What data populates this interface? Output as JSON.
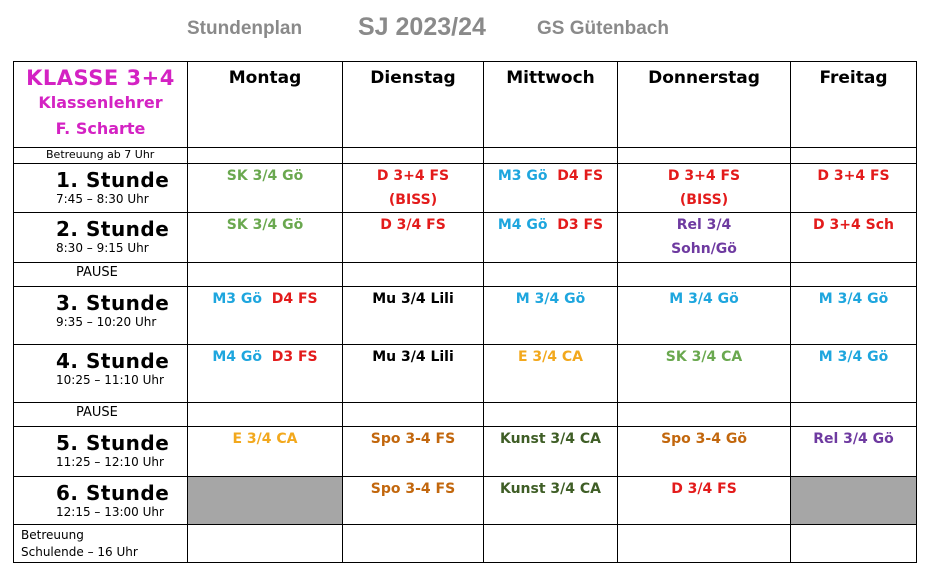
{
  "header": {
    "left": "Stundenplan",
    "center": "SJ 2023/24",
    "right": "GS Gütenbach"
  },
  "class_info": {
    "title": "KLASSE 3+4",
    "teacher_label": "Klassenlehrer",
    "teacher_name": "F. Scharte"
  },
  "days": [
    "Montag",
    "Dienstag",
    "Mittwoch",
    "Donnerstag",
    "Freitag"
  ],
  "betreuung_morning": "Betreuung ab 7 Uhr",
  "pause_label": "PAUSE",
  "betreuung_end": {
    "line1": "Betreuung",
    "line2": "Schulende – 16 Uhr"
  },
  "periods": [
    {
      "label": "1.  Stunde",
      "time": "7:45 – 8:30 Uhr",
      "cells": [
        {
          "lines": [
            {
              "text": "SK 3/4 Gö",
              "color": "#6aa84f"
            }
          ]
        },
        {
          "lines": [
            {
              "text": "D 3+4 FS",
              "color": "#e31b1b"
            },
            {
              "text": "(BISS)",
              "color": "#e31b1b"
            }
          ]
        },
        {
          "lines": [
            {
              "parts": [
                {
                  "text": "M3 Gö  ",
                  "color": "#1ea6de"
                },
                {
                  "text": "D4 FS",
                  "color": "#e31b1b"
                }
              ]
            }
          ]
        },
        {
          "lines": [
            {
              "text": "D 3+4 FS",
              "color": "#e31b1b"
            },
            {
              "text": "(BISS)",
              "color": "#e31b1b"
            }
          ]
        },
        {
          "lines": [
            {
              "text": "D 3+4 FS",
              "color": "#e31b1b"
            }
          ]
        }
      ]
    },
    {
      "label": "2.  Stunde",
      "time": "8:30 – 9:15 Uhr",
      "cells": [
        {
          "lines": [
            {
              "text": "SK 3/4 Gö",
              "color": "#6aa84f"
            }
          ]
        },
        {
          "lines": [
            {
              "text": "D 3/4 FS",
              "color": "#e31b1b"
            }
          ]
        },
        {
          "lines": [
            {
              "parts": [
                {
                  "text": "M4 Gö  ",
                  "color": "#1ea6de"
                },
                {
                  "text": "D3 FS",
                  "color": "#e31b1b"
                }
              ]
            }
          ]
        },
        {
          "lines": [
            {
              "text": "Rel 3/4",
              "color": "#6e3aa0"
            },
            {
              "text": "Sohn/Gö",
              "color": "#6e3aa0"
            }
          ]
        },
        {
          "lines": [
            {
              "text": "D 3+4 Sch",
              "color": "#e31b1b"
            }
          ]
        }
      ]
    },
    {
      "label": "3.  Stunde",
      "time": "9:35 – 10:20 Uhr",
      "cells": [
        {
          "lines": [
            {
              "parts": [
                {
                  "text": "M3 Gö  ",
                  "color": "#1ea6de"
                },
                {
                  "text": "D4 FS",
                  "color": "#e31b1b"
                }
              ]
            }
          ]
        },
        {
          "lines": [
            {
              "text": "Mu 3/4 Lili",
              "color": "#000000"
            }
          ]
        },
        {
          "lines": [
            {
              "text": "M 3/4 Gö",
              "color": "#1ea6de"
            }
          ]
        },
        {
          "lines": [
            {
              "text": "M 3/4 Gö",
              "color": "#1ea6de"
            }
          ]
        },
        {
          "lines": [
            {
              "text": "M 3/4 Gö",
              "color": "#1ea6de"
            }
          ]
        }
      ]
    },
    {
      "label": "4.  Stunde",
      "time": "10:25 – 11:10 Uhr",
      "cells": [
        {
          "lines": [
            {
              "parts": [
                {
                  "text": "M4 Gö  ",
                  "color": "#1ea6de"
                },
                {
                  "text": "D3 FS",
                  "color": "#e31b1b"
                }
              ]
            }
          ]
        },
        {
          "lines": [
            {
              "text": "Mu 3/4 Lili",
              "color": "#000000"
            }
          ]
        },
        {
          "lines": [
            {
              "text": "E 3/4 CA",
              "color": "#f2a81d"
            }
          ]
        },
        {
          "lines": [
            {
              "text": "SK 3/4 CA",
              "color": "#6aa84f"
            }
          ]
        },
        {
          "lines": [
            {
              "text": "M 3/4 Gö",
              "color": "#1ea6de"
            }
          ]
        }
      ]
    },
    {
      "label": "5.  Stunde",
      "time": "11:25 – 12:10 Uhr",
      "cells": [
        {
          "lines": [
            {
              "text": "E 3/4 CA",
              "color": "#f2a81d"
            }
          ]
        },
        {
          "lines": [
            {
              "text": "Spo 3-4 FS",
              "color": "#c2670d"
            }
          ]
        },
        {
          "lines": [
            {
              "text": "Kunst 3/4 CA",
              "color": "#3f5e26"
            }
          ]
        },
        {
          "lines": [
            {
              "text": "Spo 3-4 Gö",
              "color": "#c2670d"
            }
          ]
        },
        {
          "lines": [
            {
              "text": "Rel 3/4 Gö",
              "color": "#6e3aa0"
            }
          ]
        }
      ]
    },
    {
      "label": "6.  Stunde",
      "time": "12:15 – 13:00 Uhr",
      "cells": [
        {
          "grey": true,
          "lines": []
        },
        {
          "lines": [
            {
              "text": "Spo 3-4 FS",
              "color": "#c2670d"
            }
          ]
        },
        {
          "lines": [
            {
              "text": "Kunst 3/4 CA",
              "color": "#3f5e26"
            }
          ]
        },
        {
          "lines": [
            {
              "text": "D 3/4 FS",
              "color": "#e31b1b"
            }
          ]
        },
        {
          "grey": true,
          "lines": []
        }
      ]
    }
  ]
}
